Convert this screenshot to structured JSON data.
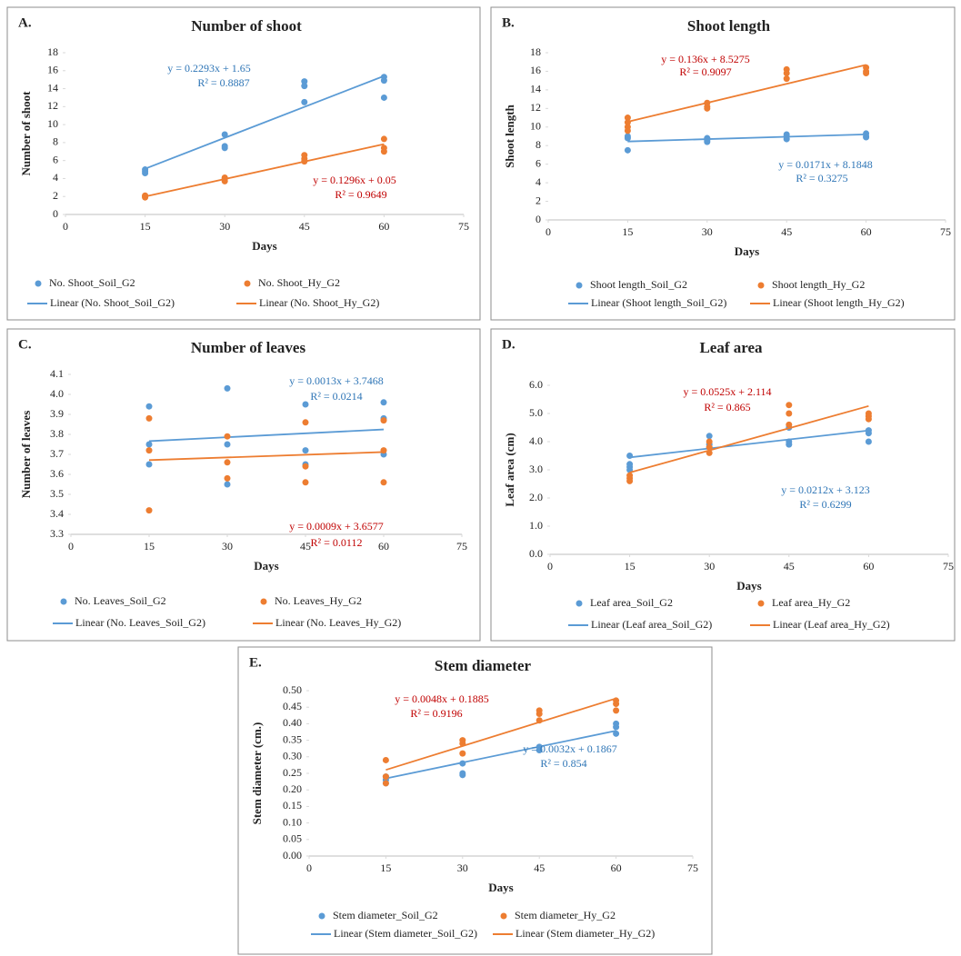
{
  "chart_data": [
    {
      "type": "scatter",
      "panel_label": "A.",
      "title": "Number of shoot",
      "x_label": "Days",
      "y_label": "Number of shoot",
      "xlim": [
        0,
        75
      ],
      "xticks": [
        0,
        15,
        30,
        45,
        60,
        75
      ],
      "ylim": [
        0,
        18
      ],
      "yticks": [
        0,
        2,
        4,
        6,
        8,
        10,
        12,
        14,
        16,
        18
      ],
      "series": [
        {
          "name": "No. Shoot_Soil_G2",
          "color": "#5b9bd5",
          "x": [
            15,
            15,
            15,
            30,
            30,
            30,
            45,
            45,
            45,
            60,
            60,
            60
          ],
          "values": [
            4.8,
            5.0,
            4.6,
            8.9,
            7.6,
            7.4,
            14.8,
            14.3,
            12.5,
            15.3,
            14.9,
            13.0
          ],
          "trendline": {
            "name": "Linear (No. Shoot_Soil_G2)",
            "slope": 0.2293,
            "intercept": 1.65,
            "equation": "y = 0.2293x  + 1.65",
            "r2": "R² = 0.8887",
            "label_color": "#2e75b6"
          }
        },
        {
          "name": "No. Shoot_Hy_G2",
          "color": "#ed7d31",
          "x": [
            15,
            15,
            15,
            30,
            30,
            30,
            45,
            45,
            45,
            60,
            60,
            60
          ],
          "values": [
            2.1,
            1.9,
            2.0,
            4.0,
            3.7,
            4.1,
            6.6,
            6.2,
            5.9,
            8.4,
            7.4,
            7.0
          ],
          "trendline": {
            "name": "Linear (No. Shoot_Hy_G2)",
            "slope": 0.1296,
            "intercept": 0.05,
            "equation": "y = 0.1296x  + 0.05",
            "r2": "R² = 0.9649",
            "label_color": "#c00000"
          }
        }
      ]
    },
    {
      "type": "scatter",
      "panel_label": "B.",
      "title": "Shoot length",
      "x_label": "Days",
      "y_label": "Shoot length",
      "xlim": [
        0,
        75
      ],
      "xticks": [
        0,
        15,
        30,
        45,
        60,
        75
      ],
      "ylim": [
        0,
        18
      ],
      "yticks": [
        0,
        2,
        4,
        6,
        8,
        10,
        12,
        14,
        16,
        18
      ],
      "series": [
        {
          "name": "Shoot length_Soil_G2",
          "color": "#5b9bd5",
          "x": [
            15,
            15,
            15,
            30,
            30,
            30,
            45,
            45,
            45,
            60,
            60,
            60
          ],
          "values": [
            7.5,
            8.8,
            9.0,
            8.4,
            8.8,
            8.6,
            8.7,
            9.2,
            9.0,
            9.0,
            9.3,
            8.9
          ],
          "trendline": {
            "name": "Linear (Shoot length_Soil_G2)",
            "slope": 0.0171,
            "intercept": 8.1848,
            "equation": "y = 0.0171x  + 8.1848",
            "r2": "R² = 0.3275",
            "label_color": "#2e75b6"
          }
        },
        {
          "name": "Shoot length_Hy_G2",
          "color": "#ed7d31",
          "x": [
            15,
            15,
            15,
            15,
            30,
            30,
            30,
            45,
            45,
            45,
            60,
            60,
            60
          ],
          "values": [
            11.0,
            10.0,
            10.5,
            9.6,
            12.6,
            12.2,
            12.0,
            16.2,
            15.8,
            15.2,
            16.4,
            16.0,
            15.8
          ],
          "trendline": {
            "name": "Linear (Shoot length_Hy_G2)",
            "slope": 0.136,
            "intercept": 8.5275,
            "equation": "y = 0.136x  + 8.5275",
            "r2": "R² = 0.9097",
            "label_color": "#c00000"
          }
        }
      ]
    },
    {
      "type": "scatter",
      "panel_label": "C.",
      "title": "Number of leaves",
      "x_label": "Days",
      "y_label": "Number of leaves",
      "xlim": [
        0,
        75
      ],
      "xticks": [
        0,
        15,
        30,
        45,
        60,
        75
      ],
      "ylim": [
        3.3,
        4.1
      ],
      "yticks": [
        3.3,
        3.4,
        3.5,
        3.6,
        3.7,
        3.8,
        3.9,
        {
          "value": 4,
          "label": "4.0"
        },
        4.1
      ],
      "series": [
        {
          "name": "No. Leaves_Soil_G2",
          "color": "#5b9bd5",
          "x": [
            15,
            15,
            15,
            30,
            30,
            30,
            45,
            45,
            45,
            60,
            60,
            60
          ],
          "values": [
            3.94,
            3.75,
            3.65,
            4.03,
            3.75,
            3.55,
            3.95,
            3.72,
            3.65,
            3.96,
            3.88,
            3.7
          ],
          "trendline": {
            "name": "Linear (No. Leaves_Soil_G2)",
            "slope": 0.0013,
            "intercept": 3.7468,
            "equation": "y = 0.0013x  + 3.7468",
            "r2": "R² = 0.0214",
            "label_color": "#2e75b6"
          }
        },
        {
          "name": "No. Leaves_Hy_G2",
          "color": "#ed7d31",
          "x": [
            15,
            15,
            15,
            30,
            30,
            30,
            45,
            45,
            45,
            60,
            60,
            60
          ],
          "values": [
            3.88,
            3.72,
            3.42,
            3.79,
            3.66,
            3.58,
            3.86,
            3.64,
            3.56,
            3.87,
            3.72,
            3.56
          ],
          "trendline": {
            "name": "Linear (No. Leaves_Hy_G2)",
            "slope": 0.0009,
            "intercept": 3.6577,
            "equation": "y = 0.0009x  + 3.6577",
            "r2": "R² = 0.0112",
            "label_color": "#c00000"
          }
        }
      ]
    },
    {
      "type": "scatter",
      "panel_label": "D.",
      "title": "Leaf area",
      "x_label": "Days",
      "y_label": "Leaf area (cm)",
      "xlim": [
        0,
        75
      ],
      "xticks": [
        0,
        15,
        30,
        45,
        60,
        75
      ],
      "ylim": [
        0,
        6
      ],
      "yticks": [
        {
          "value": 0,
          "label": "0.0"
        },
        {
          "value": 1,
          "label": "1.0"
        },
        {
          "value": 2,
          "label": "2.0"
        },
        {
          "value": 3,
          "label": "3.0"
        },
        {
          "value": 4,
          "label": "4.0"
        },
        {
          "value": 5,
          "label": "5.0"
        },
        {
          "value": 6,
          "label": "6.0"
        }
      ],
      "series": [
        {
          "name": "Leaf area_Soil_G2",
          "color": "#5b9bd5",
          "x": [
            15,
            15,
            15,
            15,
            30,
            30,
            30,
            45,
            45,
            45,
            60,
            60,
            60
          ],
          "values": [
            3.5,
            3.2,
            3.1,
            3.0,
            4.2,
            3.9,
            3.8,
            4.5,
            4.0,
            3.9,
            4.4,
            4.3,
            4.0
          ],
          "trendline": {
            "name": "Linear (Leaf area_Soil_G2)",
            "slope": 0.0212,
            "intercept": 3.123,
            "equation": "y = 0.0212x  + 3.123",
            "r2": "R² = 0.6299",
            "label_color": "#2e75b6"
          }
        },
        {
          "name": "Leaf area_Hy_G2",
          "color": "#ed7d31",
          "x": [
            15,
            15,
            15,
            30,
            30,
            30,
            45,
            45,
            45,
            60,
            60,
            60
          ],
          "values": [
            2.8,
            2.7,
            2.6,
            4.0,
            3.8,
            3.6,
            5.3,
            5.0,
            4.6,
            5.0,
            4.9,
            4.8
          ],
          "trendline": {
            "name": "Linear (Leaf area_Hy_G2)",
            "slope": 0.0525,
            "intercept": 2.114,
            "equation": "y = 0.0525x  + 2.114",
            "r2": "R² = 0.865",
            "label_color": "#c00000"
          }
        }
      ]
    },
    {
      "type": "scatter",
      "panel_label": "E.",
      "title": "Stem diameter",
      "x_label": "Days",
      "y_label": "Stem diameter (cm.)",
      "xlim": [
        0,
        75
      ],
      "xticks": [
        0,
        15,
        30,
        45,
        60,
        75
      ],
      "ylim": [
        0,
        0.5
      ],
      "yticks": [
        {
          "value": 0,
          "label": "0.00"
        },
        0.05,
        {
          "value": 0.1,
          "label": "0.10"
        },
        0.15,
        {
          "value": 0.2,
          "label": "0.20"
        },
        0.25,
        {
          "value": 0.3,
          "label": "0.30"
        },
        0.35,
        {
          "value": 0.4,
          "label": "0.40"
        },
        0.45,
        {
          "value": 0.5,
          "label": "0.50"
        }
      ],
      "series": [
        {
          "name": "Stem diameter_Soil_G2",
          "color": "#5b9bd5",
          "x": [
            15,
            15,
            15,
            30,
            30,
            30,
            45,
            45,
            60,
            60,
            60
          ],
          "values": [
            0.24,
            0.23,
            0.22,
            0.25,
            0.245,
            0.28,
            0.33,
            0.32,
            0.4,
            0.39,
            0.37
          ],
          "trendline": {
            "name": "Linear (Stem diameter_Soil_G2)",
            "slope": 0.0032,
            "intercept": 0.1867,
            "equation": "y = 0.0032x  + 0.1867",
            "r2": "R² = 0.854",
            "label_color": "#2e75b6"
          }
        },
        {
          "name": "Stem diameter_Hy_G2",
          "color": "#ed7d31",
          "x": [
            15,
            15,
            15,
            30,
            30,
            30,
            45,
            45,
            45,
            60,
            60,
            60
          ],
          "values": [
            0.29,
            0.24,
            0.22,
            0.35,
            0.34,
            0.31,
            0.44,
            0.43,
            0.41,
            0.47,
            0.46,
            0.44
          ],
          "trendline": {
            "name": "Linear (Stem diameter_Hy_G2)",
            "slope": 0.0048,
            "intercept": 0.1885,
            "equation": "y = 0.0048x  + 0.1885",
            "r2": "R² = 0.9196",
            "label_color": "#c00000"
          }
        }
      ]
    }
  ]
}
